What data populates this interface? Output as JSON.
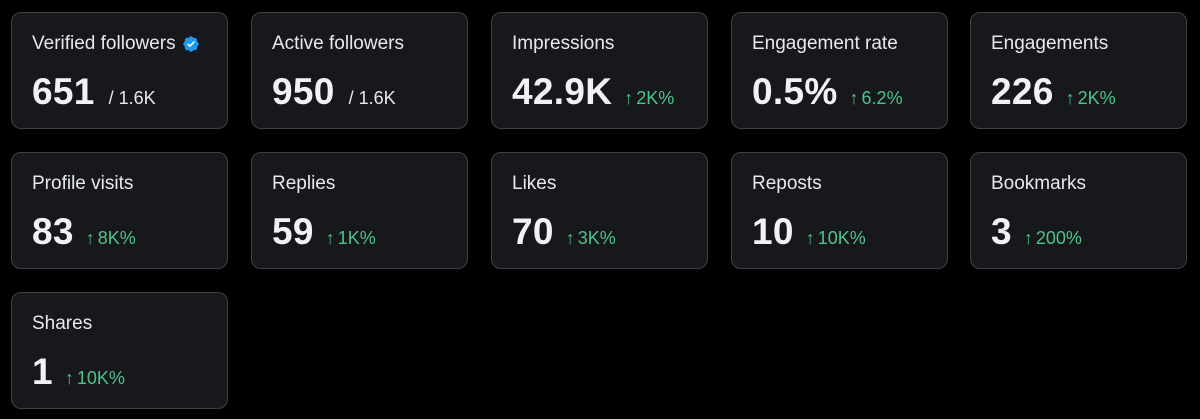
{
  "colors": {
    "background": "#000000",
    "card_background": "#16181c",
    "card_border": "#3e4144",
    "positive_change": "#4cc38a",
    "verified_badge": "#1d9bf0"
  },
  "cards": [
    {
      "label": "Verified followers",
      "value": "651",
      "suffix": "/ 1.6K",
      "change": "",
      "icon": "verified-badge-icon"
    },
    {
      "label": "Active followers",
      "value": "950",
      "suffix": "/ 1.6K",
      "change": ""
    },
    {
      "label": "Impressions",
      "value": "42.9K",
      "suffix": "",
      "change": "2K%",
      "icon": "arrow-up-icon"
    },
    {
      "label": "Engagement rate",
      "value": "0.5%",
      "suffix": "",
      "change": "6.2%",
      "icon": "arrow-up-icon"
    },
    {
      "label": "Engagements",
      "value": "226",
      "suffix": "",
      "change": "2K%",
      "icon": "arrow-up-icon"
    },
    {
      "label": "Profile visits",
      "value": "83",
      "suffix": "",
      "change": "8K%",
      "icon": "arrow-up-icon"
    },
    {
      "label": "Replies",
      "value": "59",
      "suffix": "",
      "change": "1K%",
      "icon": "arrow-up-icon"
    },
    {
      "label": "Likes",
      "value": "70",
      "suffix": "",
      "change": "3K%",
      "icon": "arrow-up-icon"
    },
    {
      "label": "Reposts",
      "value": "10",
      "suffix": "",
      "change": "10K%",
      "icon": "arrow-up-icon"
    },
    {
      "label": "Bookmarks",
      "value": "3",
      "suffix": "",
      "change": "200%",
      "icon": "arrow-up-icon"
    },
    {
      "label": "Shares",
      "value": "1",
      "suffix": "",
      "change": "10K%",
      "icon": "arrow-up-icon"
    }
  ],
  "arrow_glyph": "↑"
}
